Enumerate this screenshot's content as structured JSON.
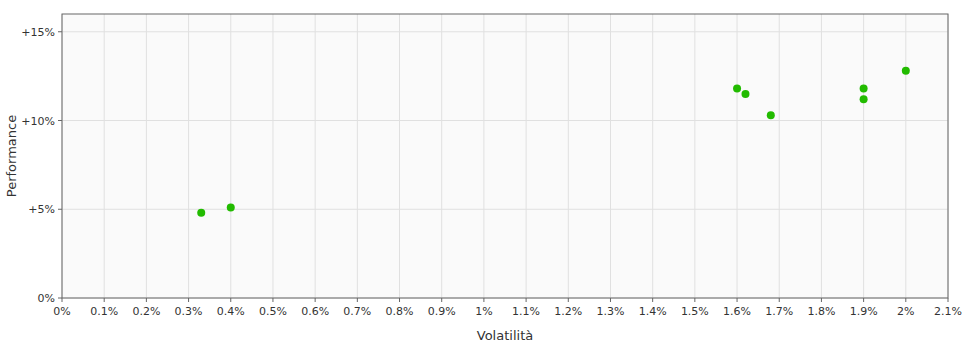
{
  "chart_data": {
    "type": "scatter",
    "xlabel": "Volatilità",
    "ylabel": "Performance",
    "x": [
      0.0033,
      0.004,
      0.016,
      0.0162,
      0.0168,
      0.019,
      0.019,
      0.02
    ],
    "values": [
      0.048,
      0.051,
      0.118,
      0.115,
      0.103,
      0.118,
      0.112,
      0.128
    ],
    "color": "#22bb00",
    "xlim": [
      0.0,
      0.021
    ],
    "ylim": [
      0.0,
      0.16
    ],
    "xticks": [
      {
        "value": 0.0,
        "label": "0%"
      },
      {
        "value": 0.001,
        "label": "0.1%"
      },
      {
        "value": 0.002,
        "label": "0.2%"
      },
      {
        "value": 0.003,
        "label": "0.3%"
      },
      {
        "value": 0.004,
        "label": "0.4%"
      },
      {
        "value": 0.005,
        "label": "0.5%"
      },
      {
        "value": 0.006,
        "label": "0.6%"
      },
      {
        "value": 0.007,
        "label": "0.7%"
      },
      {
        "value": 0.008,
        "label": "0.8%"
      },
      {
        "value": 0.009,
        "label": "0.9%"
      },
      {
        "value": 0.01,
        "label": "1%"
      },
      {
        "value": 0.011,
        "label": "1.1%"
      },
      {
        "value": 0.012,
        "label": "1.2%"
      },
      {
        "value": 0.013,
        "label": "1.3%"
      },
      {
        "value": 0.014,
        "label": "1.4%"
      },
      {
        "value": 0.015,
        "label": "1.5%"
      },
      {
        "value": 0.016,
        "label": "1.6%"
      },
      {
        "value": 0.017,
        "label": "1.7%"
      },
      {
        "value": 0.018,
        "label": "1.8%"
      },
      {
        "value": 0.019,
        "label": "1.9%"
      },
      {
        "value": 0.02,
        "label": "2%"
      },
      {
        "value": 0.021,
        "label": "2.1%"
      }
    ],
    "yticks": [
      {
        "value": 0.0,
        "label": "0%"
      },
      {
        "value": 0.05,
        "label": "+5%"
      },
      {
        "value": 0.1,
        "label": "+10%"
      },
      {
        "value": 0.15,
        "label": "+15%"
      }
    ],
    "grid": true
  }
}
